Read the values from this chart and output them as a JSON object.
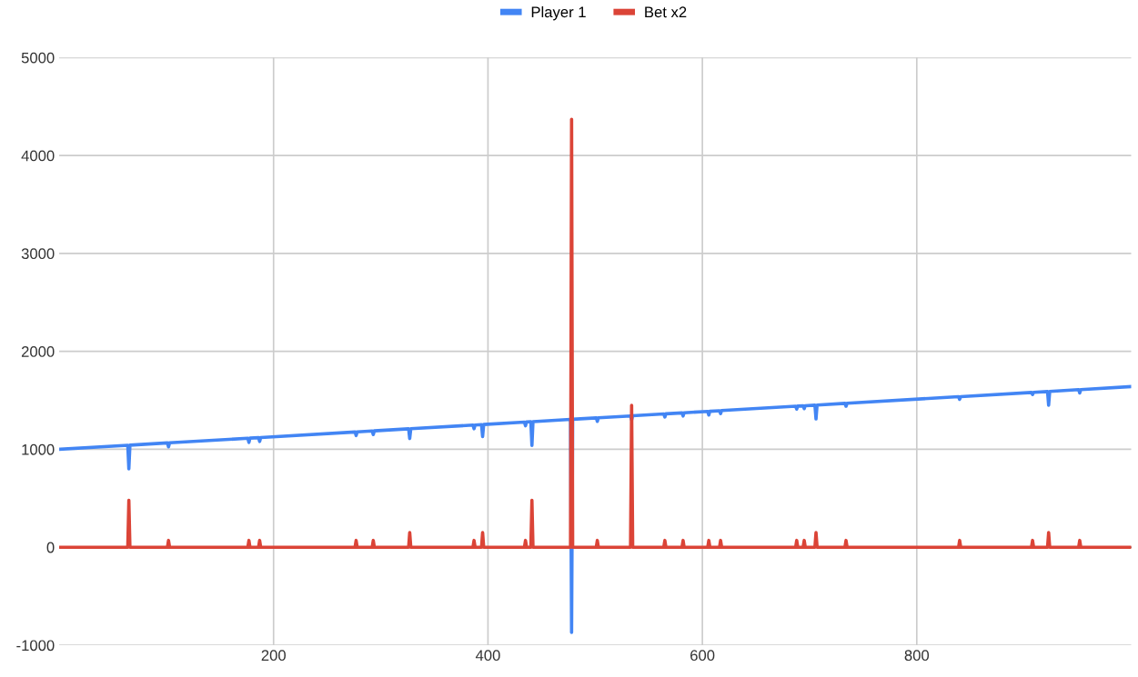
{
  "chart_data": {
    "type": "line",
    "x": [
      1,
      64,
      65,
      66,
      101,
      102,
      103,
      176,
      177,
      178,
      186,
      187,
      188,
      276,
      277,
      278,
      292,
      293,
      294,
      326,
      327,
      328,
      386,
      387,
      388,
      394,
      395,
      396,
      434,
      435,
      436,
      440,
      441,
      442,
      477,
      478,
      479,
      501,
      502,
      503,
      533,
      534,
      535,
      564,
      565,
      566,
      581,
      582,
      583,
      605,
      606,
      607,
      616,
      617,
      618,
      687,
      688,
      689,
      694,
      695,
      696,
      705,
      706,
      707,
      733,
      734,
      735,
      839,
      840,
      841,
      907,
      908,
      909,
      922,
      923,
      924,
      951,
      952,
      953,
      1000
    ],
    "series": [
      {
        "name": "Player 1",
        "color": "#4285f4",
        "values": [
          1001,
          1041,
          800,
          1042,
          1065,
          1025,
          1066,
          1113,
          1070,
          1114,
          1119,
          1080,
          1120,
          1177,
          1140,
          1178,
          1187,
          1150,
          1188,
          1209,
          1110,
          1210,
          1247,
          1210,
          1248,
          1252,
          1130,
          1253,
          1278,
          1240,
          1279,
          1282,
          1040,
          1283,
          1305,
          -870,
          1307,
          1321,
          1285,
          1322,
          1341,
          1300,
          1342,
          1361,
          1330,
          1362,
          1372,
          1340,
          1373,
          1387,
          1350,
          1388,
          1394,
          1365,
          1396,
          1440,
          1410,
          1441,
          1444,
          1415,
          1445,
          1451,
          1310,
          1452,
          1469,
          1440,
          1470,
          1537,
          1510,
          1538,
          1580,
          1560,
          1582,
          1590,
          1450,
          1591,
          1609,
          1575,
          1610,
          1640
        ]
      },
      {
        "name": "Bet x2",
        "color": "#db4437",
        "values": [
          0,
          0,
          480,
          0,
          0,
          70,
          0,
          0,
          70,
          0,
          0,
          70,
          0,
          0,
          70,
          0,
          0,
          70,
          0,
          0,
          150,
          0,
          0,
          70,
          0,
          0,
          150,
          0,
          0,
          70,
          0,
          0,
          480,
          0,
          0,
          4370,
          0,
          0,
          70,
          0,
          0,
          1450,
          0,
          0,
          70,
          0,
          0,
          70,
          0,
          0,
          70,
          0,
          0,
          70,
          0,
          0,
          70,
          0,
          0,
          70,
          0,
          0,
          150,
          0,
          0,
          70,
          0,
          0,
          70,
          0,
          0,
          70,
          0,
          0,
          150,
          0,
          0,
          70,
          0,
          0
        ]
      }
    ],
    "xlim": [
      0,
      1000
    ],
    "xticks": [
      200,
      400,
      600,
      800
    ],
    "ylim": [
      -1000,
      5000
    ],
    "yticks": [
      -1000,
      0,
      1000,
      2000,
      3000,
      4000,
      5000
    ],
    "grid": true,
    "legend": "top",
    "marker": "none",
    "line_style": "solid"
  }
}
